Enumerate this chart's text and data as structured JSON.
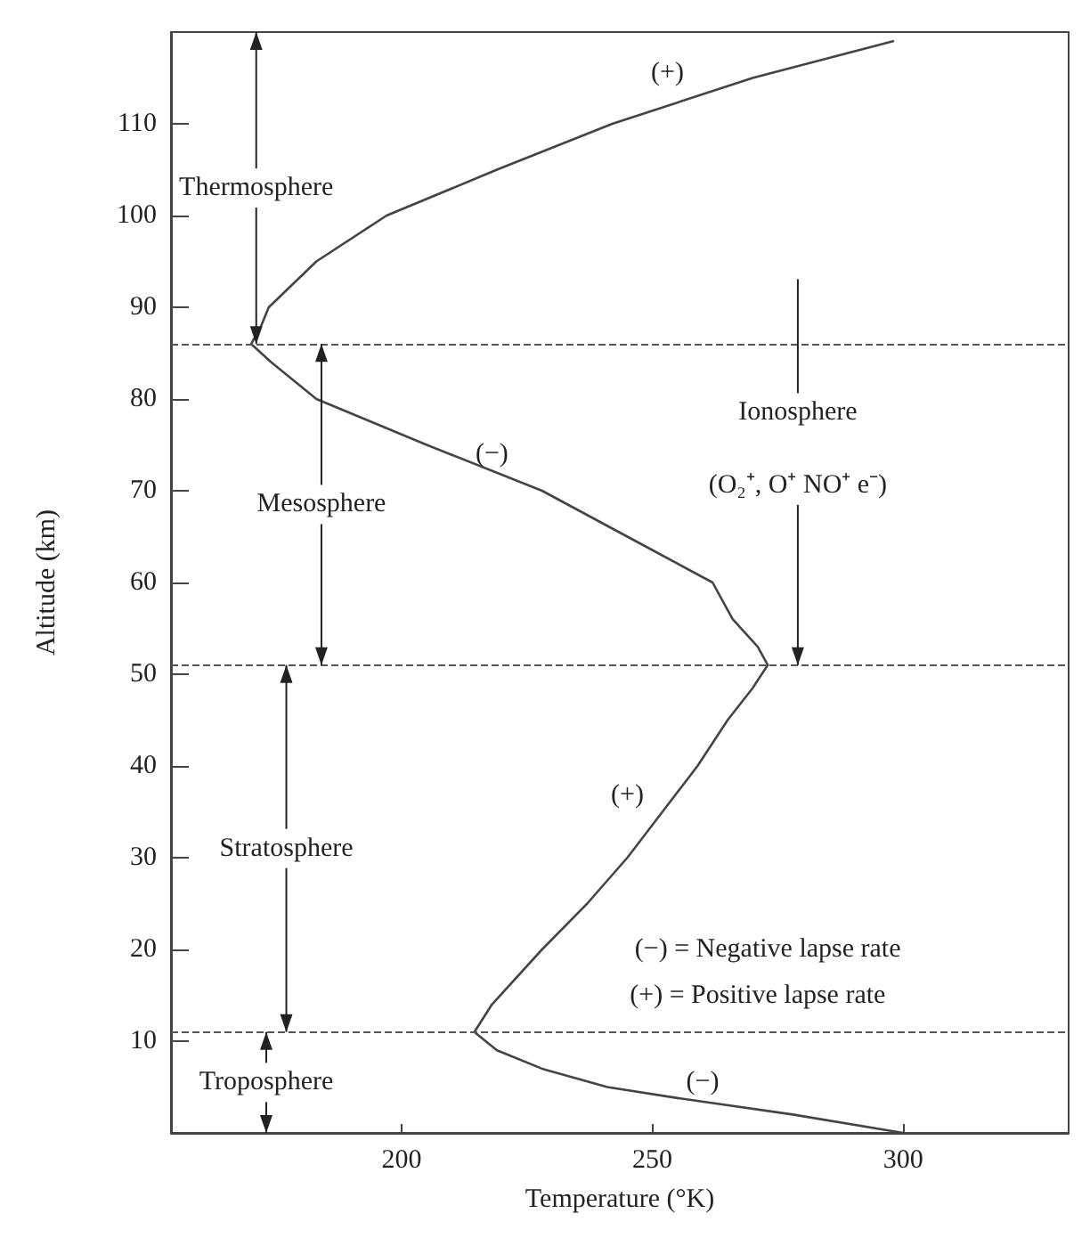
{
  "chart_data": {
    "type": "line",
    "xlabel": "Temperature (°K)",
    "ylabel": "Altitude (km)",
    "xlim": [
      154,
      333
    ],
    "ylim": [
      0,
      120
    ],
    "xticks": [
      200,
      250,
      300
    ],
    "yticks": [
      10,
      20,
      30,
      40,
      50,
      60,
      70,
      80,
      90,
      100,
      110
    ],
    "grid": false,
    "marker": "none",
    "line_style": "solid",
    "series": [
      {
        "color": "#444444",
        "x": [
          300,
          278,
          255,
          241,
          228,
          219,
          214.5,
          218,
          228,
          237,
          245,
          252,
          259,
          265,
          270,
          273,
          271,
          266,
          262,
          245,
          228,
          205,
          183,
          174,
          170,
          172,
          173.5,
          183,
          197,
          219,
          242,
          270,
          298
        ],
        "values": [
          0,
          2,
          3.8,
          5,
          7,
          9,
          11,
          14,
          20,
          25,
          30,
          35,
          40,
          45,
          48.5,
          51,
          53,
          56,
          60,
          65,
          70,
          75,
          80,
          84,
          86,
          88,
          90,
          95,
          100,
          105,
          110,
          115,
          119
        ]
      }
    ],
    "ref_lines": [
      {
        "axis": "y",
        "value": 86,
        "line_style": "dashed",
        "color": "#555555"
      },
      {
        "axis": "y",
        "value": 51,
        "line_style": "dashed",
        "color": "#555555"
      },
      {
        "axis": "y",
        "value": 11,
        "line_style": "dashed",
        "color": "#555555"
      }
    ],
    "annotations": [
      {
        "text": "Thermosphere",
        "x": 171,
        "y": 86
      },
      {
        "text": "Mesosphere",
        "x": 184,
        "y": 51
      },
      {
        "text": "Stratosphere",
        "x": 177,
        "y": 11
      },
      {
        "text": "Troposphere",
        "x": 173,
        "y": 11
      },
      "Ionosphere",
      {
        "text": "(O₂⁺, O⁺ NO⁺ e⁻)",
        "x": 279,
        "y": 51
      },
      "(+)",
      "(−)",
      "(+)",
      "(−)",
      "(−) = Negative lapse rate",
      "(+) = Positive lapse rate"
    ]
  }
}
